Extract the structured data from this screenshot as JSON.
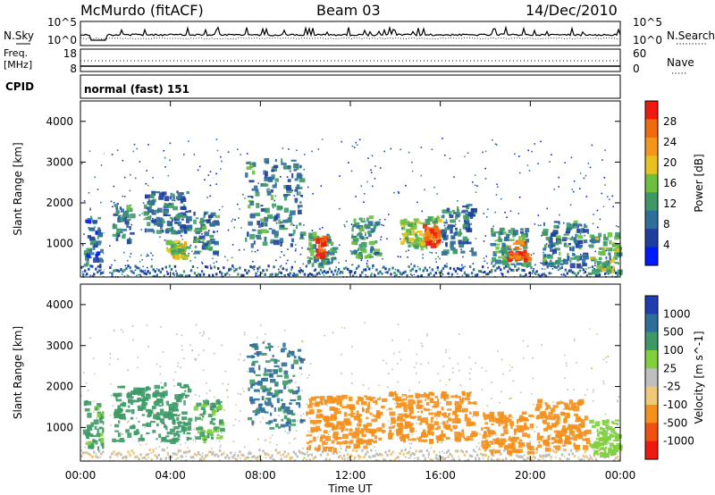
{
  "header": {
    "station": "McMurdo (fitACF)",
    "beam": "Beam 03",
    "date": "14/Dec/2010"
  },
  "top_panels": {
    "nsky_label": "N.Sky",
    "nsky_ticks": [
      "10^5",
      "10^0"
    ],
    "nsearch_label": "N.Search",
    "nsearch_ticks": [
      "10^5",
      "10^0"
    ],
    "freq_label": "Freq.",
    "freq_unit": "[MHz]",
    "freq_ticks": [
      "18",
      "8"
    ],
    "nave_label": "Nave",
    "nave_ticks": [
      "60",
      "0"
    ],
    "cpid_label": "CPID",
    "cpid_value": "normal (fast) 151"
  },
  "colors": {
    "power_scale": [
      "#0019ff",
      "#1f3f9f",
      "#2e6e9a",
      "#3d9a66",
      "#6fbf3f",
      "#e8c020",
      "#f4961c",
      "#f06a10",
      "#ee1a12"
    ],
    "velocity_scale": [
      "#ee1a12",
      "#f05010",
      "#f4901c",
      "#f0c878",
      "#bfbfbf",
      "#7fcf3f",
      "#3d9a66",
      "#2e6e9a",
      "#1f3fb0"
    ]
  },
  "chart_data": [
    {
      "type": "heatmap",
      "name": "power",
      "ylabel": "Slant Range [km]",
      "yticks": [
        "1000",
        "2000",
        "3000",
        "4000"
      ],
      "ylim": [
        180,
        4500
      ],
      "colorbar_label": "Power [dB]",
      "colorbar_ticks": [
        "4",
        "8",
        "12",
        "16",
        "20",
        "24",
        "28"
      ],
      "colorbar_range": [
        0,
        32
      ],
      "data_gaps_hours": [
        [
          1.05,
          1.25
        ]
      ],
      "patches": [
        {
          "t0": 0.1,
          "t1": 0.9,
          "r0": 450,
          "r1": 1700,
          "level": 8
        },
        {
          "t0": 1.4,
          "t1": 2.2,
          "r0": 1100,
          "r1": 2000,
          "level": 10
        },
        {
          "t0": 2.8,
          "t1": 4.8,
          "r0": 1300,
          "r1": 2300,
          "level": 9
        },
        {
          "t0": 3.8,
          "t1": 4.7,
          "r0": 700,
          "r1": 1100,
          "level": 18
        },
        {
          "t0": 5.0,
          "t1": 6.0,
          "r0": 800,
          "r1": 1800,
          "level": 10
        },
        {
          "t0": 7.3,
          "t1": 9.8,
          "r0": 1000,
          "r1": 3100,
          "level": 10
        },
        {
          "t0": 10.0,
          "t1": 11.2,
          "r0": 500,
          "r1": 1300,
          "level": 12
        },
        {
          "t0": 10.4,
          "t1": 10.9,
          "r0": 600,
          "r1": 1200,
          "level": 28
        },
        {
          "t0": 12.0,
          "t1": 13.2,
          "r0": 700,
          "r1": 1700,
          "level": 12
        },
        {
          "t0": 14.2,
          "t1": 15.9,
          "r0": 900,
          "r1": 1700,
          "level": 16
        },
        {
          "t0": 15.2,
          "t1": 15.9,
          "r0": 1000,
          "r1": 1500,
          "level": 26
        },
        {
          "t0": 16.0,
          "t1": 17.4,
          "r0": 800,
          "r1": 2000,
          "level": 9
        },
        {
          "t0": 18.2,
          "t1": 19.8,
          "r0": 500,
          "r1": 1400,
          "level": 12
        },
        {
          "t0": 19.0,
          "t1": 19.8,
          "r0": 600,
          "r1": 1100,
          "level": 26
        },
        {
          "t0": 20.5,
          "t1": 22.4,
          "r0": 500,
          "r1": 1600,
          "level": 10
        },
        {
          "t0": 22.6,
          "t1": 23.9,
          "r0": 350,
          "r1": 1300,
          "level": 14
        }
      ]
    },
    {
      "type": "heatmap",
      "name": "velocity",
      "ylabel": "Slant Range [km]",
      "yticks": [
        "1000",
        "2000",
        "3000",
        "4000"
      ],
      "ylim": [
        180,
        4500
      ],
      "colorbar_label": "Velocity [m s^-1]",
      "colorbar_ticks": [
        "1000",
        "500",
        "100",
        "25",
        "-25",
        "-100",
        "-500",
        "-1000"
      ],
      "data_gaps_hours": [
        [
          1.05,
          1.25
        ]
      ],
      "patches": [
        {
          "t0": 0.1,
          "t1": 1.0,
          "r0": 450,
          "r1": 1700,
          "vel": 150
        },
        {
          "t0": 1.4,
          "t1": 4.8,
          "r0": 700,
          "r1": 2100,
          "vel": 200
        },
        {
          "t0": 5.0,
          "t1": 6.2,
          "r0": 700,
          "r1": 1700,
          "vel": 120
        },
        {
          "t0": 7.3,
          "t1": 9.8,
          "r0": 1000,
          "r1": 3100,
          "vel": 600
        },
        {
          "t0": 10.0,
          "t1": 13.4,
          "r0": 500,
          "r1": 1800,
          "vel": -300
        },
        {
          "t0": 13.6,
          "t1": 17.5,
          "r0": 700,
          "r1": 1900,
          "vel": -250
        },
        {
          "t0": 17.8,
          "t1": 20.0,
          "r0": 400,
          "r1": 1400,
          "vel": -300
        },
        {
          "t0": 20.2,
          "t1": 22.5,
          "r0": 500,
          "r1": 1700,
          "vel": -200
        },
        {
          "t0": 22.6,
          "t1": 23.9,
          "r0": 350,
          "r1": 1200,
          "vel": 60
        }
      ]
    }
  ],
  "xaxis": {
    "label": "Time UT",
    "ticks": [
      "00:00",
      "04:00",
      "08:00",
      "12:00",
      "16:00",
      "20:00",
      "00:00"
    ],
    "range_hours": [
      0,
      24
    ]
  }
}
